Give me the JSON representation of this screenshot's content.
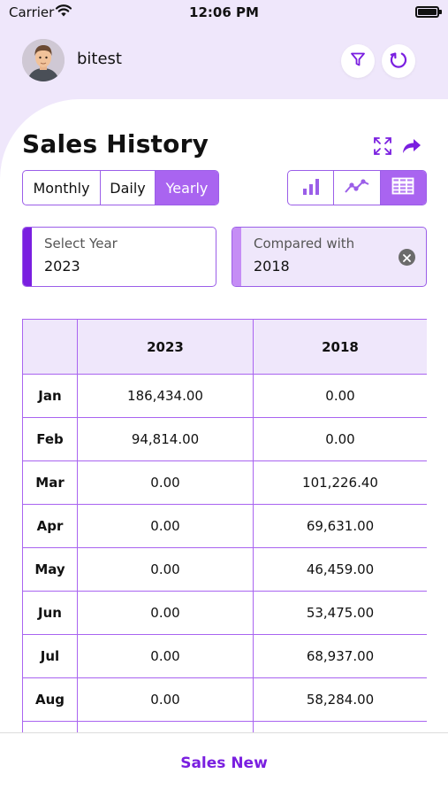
{
  "status": {
    "carrier": "Carrier",
    "time": "12:06 PM"
  },
  "user": {
    "name": "bitest"
  },
  "icons": {
    "filter": "filter-icon",
    "refresh": "refresh-icon",
    "expand": "expand-icon",
    "share": "share-icon",
    "bar_chart": "bar-chart-icon",
    "line_chart": "line-chart-icon",
    "table": "table-icon",
    "clear": "clear-icon"
  },
  "page": {
    "title": "Sales History"
  },
  "period_tabs": [
    "Monthly",
    "Daily",
    "Yearly"
  ],
  "active_period": "Yearly",
  "chart_types": [
    "bar",
    "line",
    "table"
  ],
  "active_chart_type": "table",
  "select_year": {
    "label": "Select Year",
    "value": "2023"
  },
  "compared_with": {
    "label": "Compared with",
    "value": "2018"
  },
  "table": {
    "headers": [
      "",
      "2023",
      "2018"
    ],
    "rows": [
      [
        "Jan",
        "186,434.00",
        "0.00"
      ],
      [
        "Feb",
        "94,814.00",
        "0.00"
      ],
      [
        "Mar",
        "0.00",
        "101,226.40"
      ],
      [
        "Apr",
        "0.00",
        "69,631.00"
      ],
      [
        "May",
        "0.00",
        "46,459.00"
      ],
      [
        "Jun",
        "0.00",
        "53,475.00"
      ],
      [
        "Jul",
        "0.00",
        "68,937.00"
      ],
      [
        "Aug",
        "0.00",
        "58,284.00"
      ],
      [
        "",
        "",
        ""
      ]
    ]
  },
  "bottom": {
    "button_label": "Sales New"
  },
  "colors": {
    "accent": "#a964f0",
    "accent_dark": "#7a1fe0",
    "light_bg": "#efe7fb"
  }
}
